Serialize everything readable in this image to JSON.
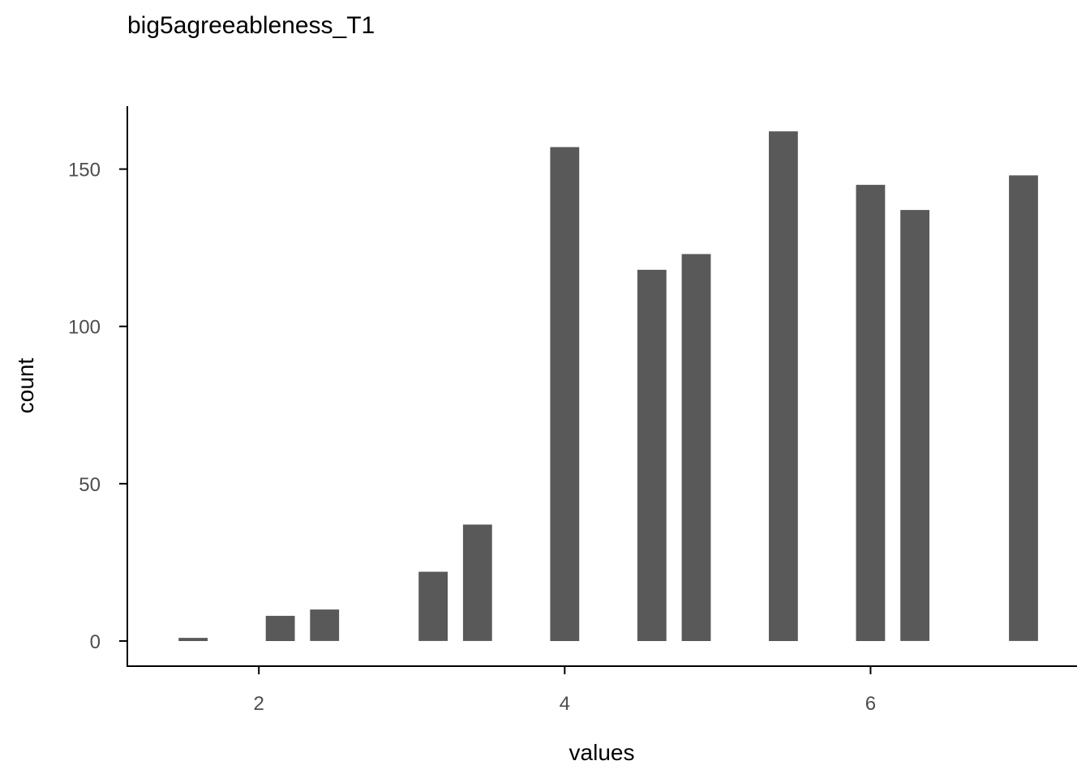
{
  "chart_data": {
    "type": "bar",
    "title": "big5agreeableness_T1",
    "xlabel": "values",
    "ylabel": "count",
    "x": [
      1.57,
      2.14,
      2.43,
      3.14,
      3.43,
      4.0,
      4.57,
      4.86,
      5.43,
      6.0,
      6.29,
      7.0
    ],
    "values": [
      1,
      8,
      10,
      22,
      37,
      157,
      118,
      123,
      162,
      145,
      137,
      148
    ],
    "xticks": [
      2,
      4,
      6
    ],
    "yticks": [
      0,
      50,
      100,
      150
    ],
    "xlim": [
      1.14,
      7.35
    ],
    "ylim": [
      -8,
      170
    ],
    "bar_width": 0.19,
    "grid": false,
    "colors": {
      "bar": "#595959"
    }
  }
}
